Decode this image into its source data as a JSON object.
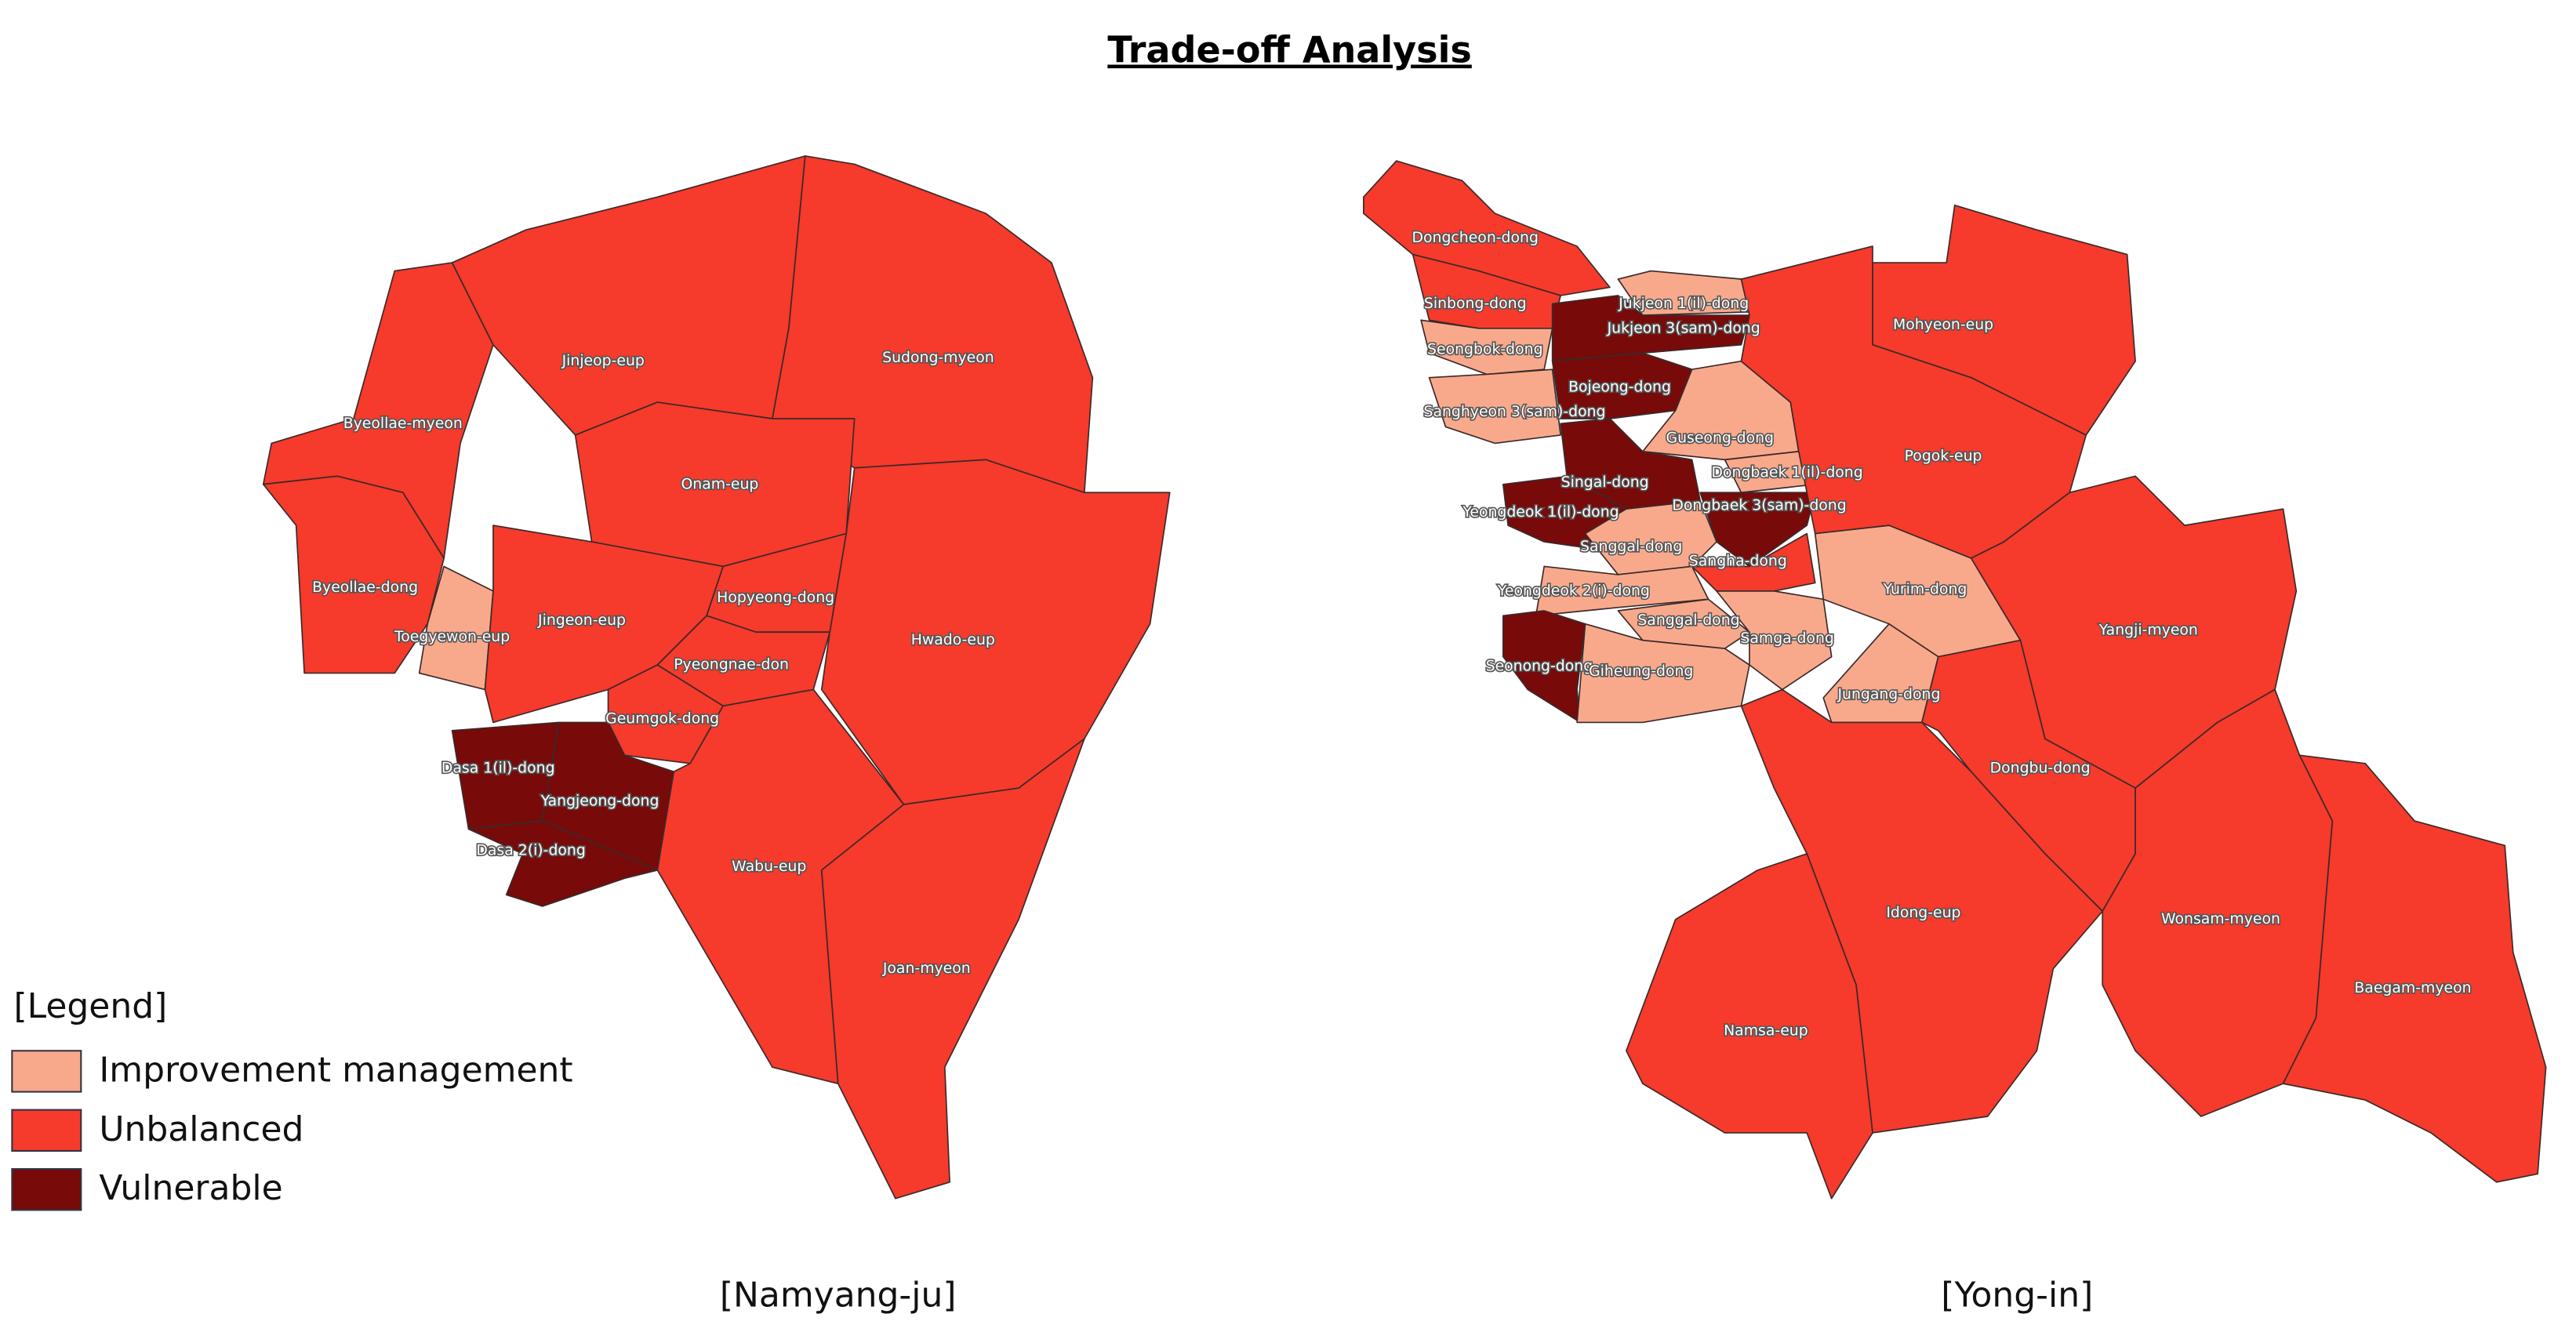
{
  "title": "Trade-off Analysis",
  "legend": {
    "title": "[Legend]",
    "items": [
      {
        "label": "Improvement management",
        "color": "#f9a98b"
      },
      {
        "label": "Unbalanced",
        "color": "#f63a2b"
      },
      {
        "label": "Vulnerable",
        "color": "#780a0a"
      }
    ]
  },
  "maps": [
    {
      "caption": "[Namyang-ju]",
      "regions": [
        {
          "name": "Byeollae-myeon",
          "class": 1
        },
        {
          "name": "Jinjeop-eup",
          "class": 1
        },
        {
          "name": "Sudong-myeon",
          "class": 1
        },
        {
          "name": "Byeollae-dong",
          "class": 1
        },
        {
          "name": "Toegyewon-eup",
          "class": 0
        },
        {
          "name": "Onam-eup",
          "class": 1
        },
        {
          "name": "Jingeon-eup",
          "class": 1
        },
        {
          "name": "Hopyeong-dong",
          "class": 1
        },
        {
          "name": "Pyeongnae-don",
          "class": 1
        },
        {
          "name": "Hwado-eup",
          "class": 1
        },
        {
          "name": "Geumgok-dong",
          "class": 1
        },
        {
          "name": "Dasa 1(il)-dong",
          "class": 2
        },
        {
          "name": "Yangjeong-dong",
          "class": 2
        },
        {
          "name": "Dasa 2(i)-dong",
          "class": 2
        },
        {
          "name": "Wabu-eup",
          "class": 1
        },
        {
          "name": "Joan-myeon",
          "class": 1
        }
      ]
    },
    {
      "caption": "[Yong-in]",
      "regions": [
        {
          "name": "Dongcheon-dong",
          "class": 1
        },
        {
          "name": "Sinbong-dong",
          "class": 1
        },
        {
          "name": "Seongbok-dong",
          "class": 0
        },
        {
          "name": "Sanghyeon 3(sam)-dong",
          "class": 0
        },
        {
          "name": "Jukjeon 1(il)-dong",
          "class": 0
        },
        {
          "name": "Jukjeon 3(sam)-dong",
          "class": 2
        },
        {
          "name": "Bojeong-dong",
          "class": 2
        },
        {
          "name": "Guseong-dong",
          "class": 0
        },
        {
          "name": "Singal-dong",
          "class": 2
        },
        {
          "name": "Yeongdeok 1(il)-dong",
          "class": 2
        },
        {
          "name": "Dongbaek 1(il)-dong",
          "class": 0
        },
        {
          "name": "Dongbaek 3(sam)-dong",
          "class": 2
        },
        {
          "name": "Sanggal-dong",
          "class": 0
        },
        {
          "name": "Sangha-dong",
          "class": 1
        },
        {
          "name": "Yeongdeok 2(i)-dong",
          "class": 0
        },
        {
          "name": "Sanggal-dong",
          "class": 0
        },
        {
          "name": "Samga-dong",
          "class": 0
        },
        {
          "name": "Seonong-dong",
          "class": 2
        },
        {
          "name": "Giheung-dong",
          "class": 0
        },
        {
          "name": "Yurim-dong",
          "class": 0
        },
        {
          "name": "Jungang-dong",
          "class": 0
        },
        {
          "name": "Mohyeon-eup",
          "class": 1
        },
        {
          "name": "Pogok-eup",
          "class": 1
        },
        {
          "name": "Yangji-myeon",
          "class": 1
        },
        {
          "name": "Dongbu-dong",
          "class": 1
        },
        {
          "name": "Idong-eup",
          "class": 1
        },
        {
          "name": "Namsa-eup",
          "class": 1
        },
        {
          "name": "Wonsam-myeon",
          "class": 1
        },
        {
          "name": "Baegam-myeon",
          "class": 1
        }
      ]
    }
  ]
}
